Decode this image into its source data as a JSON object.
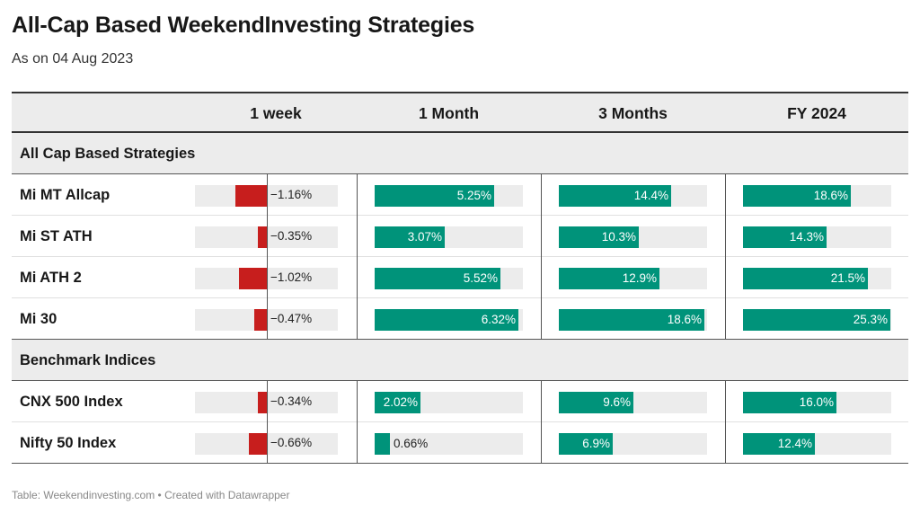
{
  "title": "All-Cap Based WeekendInvesting Strategies",
  "subtitle": "As on 04 Aug 2023",
  "footer": "Table: Weekendinvesting.com • Created with Datawrapper",
  "colors": {
    "negative": "#c71e1d",
    "positive": "#00937a",
    "bar_background": "#ececec"
  },
  "columns": [
    "1 week",
    "1 Month",
    "3 Months",
    "FY 2024"
  ],
  "chart_data": {
    "type": "table",
    "columns": [
      "1 week",
      "1 Month",
      "3 Months",
      "FY 2024"
    ],
    "groups": [
      {
        "name": "All Cap Based Strategies",
        "rows": [
          {
            "name": "Mi MT Allcap",
            "values": [
              -1.16,
              5.25,
              14.4,
              18.6
            ],
            "labels": [
              "−1.16%",
              "5.25%",
              "14.4%",
              "18.6%"
            ]
          },
          {
            "name": "Mi ST ATH",
            "values": [
              -0.35,
              3.07,
              10.3,
              14.3
            ],
            "labels": [
              "−0.35%",
              "3.07%",
              "10.3%",
              "14.3%"
            ]
          },
          {
            "name": "Mi ATH 2",
            "values": [
              -1.02,
              5.52,
              12.9,
              21.5
            ],
            "labels": [
              "−1.02%",
              "5.52%",
              "12.9%",
              "21.5%"
            ]
          },
          {
            "name": "Mi 30",
            "values": [
              -0.47,
              6.32,
              18.6,
              25.3
            ],
            "labels": [
              "−0.47%",
              "6.32%",
              "18.6%",
              "25.3%"
            ]
          }
        ]
      },
      {
        "name": "Benchmark Indices",
        "rows": [
          {
            "name": "CNX 500 Index",
            "values": [
              -0.34,
              2.02,
              9.6,
              16.0
            ],
            "labels": [
              "−0.34%",
              "2.02%",
              "9.6%",
              "16.0%"
            ]
          },
          {
            "name": "Nifty 50 Index",
            "values": [
              -0.66,
              0.66,
              6.9,
              12.4
            ],
            "labels": [
              "−0.66%",
              "0.66%",
              "6.9%",
              "12.4%"
            ]
          }
        ]
      }
    ]
  }
}
